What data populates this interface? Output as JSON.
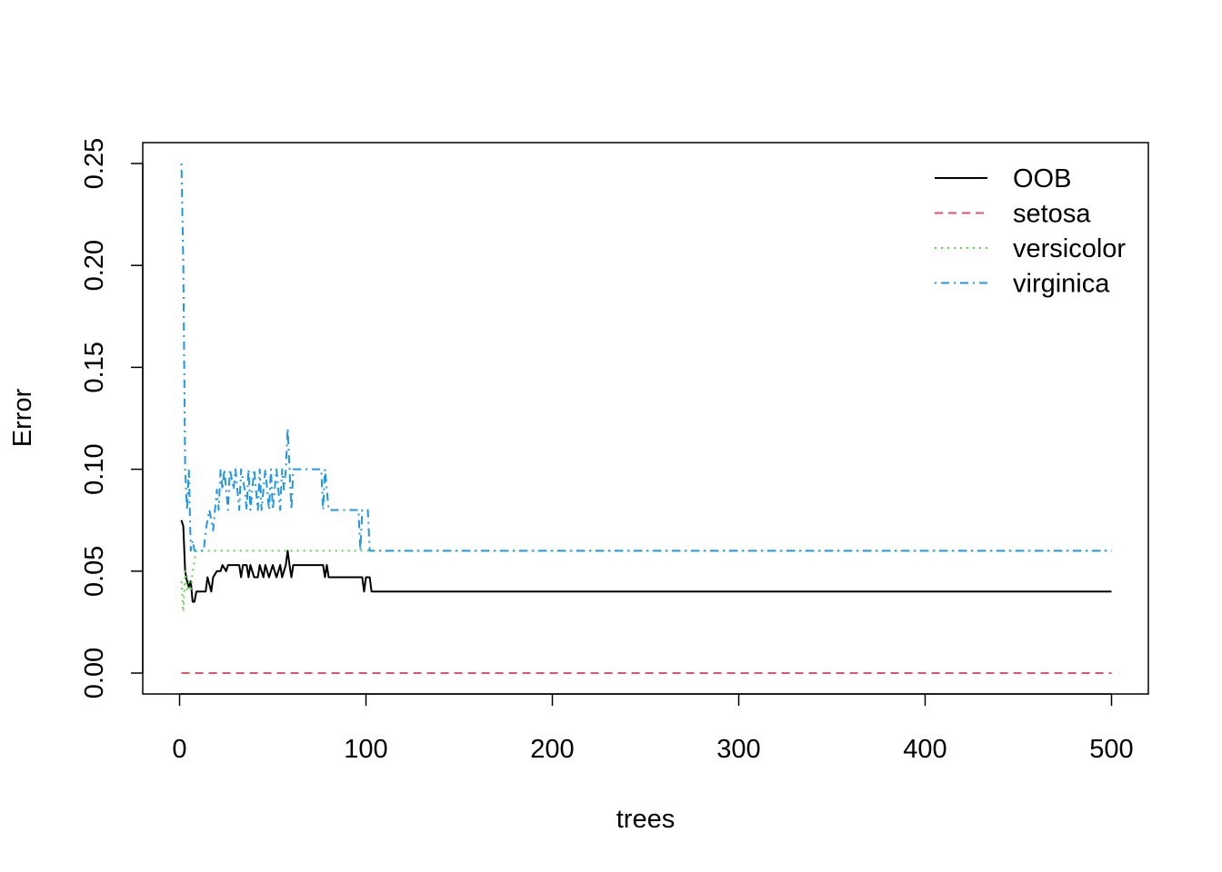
{
  "chart_data": {
    "type": "line",
    "title": "",
    "xlabel": "trees",
    "ylabel": "Error",
    "xlim": [
      0,
      500
    ],
    "ylim": [
      0,
      0.25
    ],
    "x_ticks": [
      "0",
      "100",
      "200",
      "300",
      "400",
      "500"
    ],
    "y_ticks": [
      "0.00",
      "0.05",
      "0.10",
      "0.15",
      "0.20",
      "0.25"
    ],
    "grid": false,
    "legend_position": "top-right",
    "series": [
      {
        "name": "OOB",
        "color": "#000000",
        "dash": "solid",
        "points": [
          [
            1,
            0.075
          ],
          [
            2,
            0.072
          ],
          [
            3,
            0.05
          ],
          [
            4,
            0.045
          ],
          [
            5,
            0.042
          ],
          [
            6,
            0.045
          ],
          [
            7,
            0.035
          ],
          [
            8,
            0.035
          ],
          [
            9,
            0.04
          ],
          [
            10,
            0.04
          ],
          [
            14,
            0.04
          ],
          [
            15,
            0.047
          ],
          [
            17,
            0.04
          ],
          [
            18,
            0.047
          ],
          [
            20,
            0.05
          ],
          [
            22,
            0.05
          ],
          [
            23,
            0.053
          ],
          [
            25,
            0.05
          ],
          [
            26,
            0.053
          ],
          [
            32,
            0.053
          ],
          [
            33,
            0.047
          ],
          [
            34,
            0.053
          ],
          [
            36,
            0.053
          ],
          [
            37,
            0.047
          ],
          [
            38,
            0.053
          ],
          [
            40,
            0.047
          ],
          [
            42,
            0.047
          ],
          [
            43,
            0.053
          ],
          [
            45,
            0.047
          ],
          [
            46,
            0.053
          ],
          [
            48,
            0.047
          ],
          [
            50,
            0.053
          ],
          [
            52,
            0.047
          ],
          [
            54,
            0.053
          ],
          [
            55,
            0.047
          ],
          [
            57,
            0.053
          ],
          [
            58,
            0.06
          ],
          [
            59,
            0.053
          ],
          [
            60,
            0.047
          ],
          [
            61,
            0.053
          ],
          [
            77,
            0.053
          ],
          [
            78,
            0.047
          ],
          [
            79,
            0.053
          ],
          [
            80,
            0.047
          ],
          [
            98,
            0.047
          ],
          [
            99,
            0.04
          ],
          [
            100,
            0.047
          ],
          [
            102,
            0.047
          ],
          [
            103,
            0.04
          ],
          [
            500,
            0.04
          ]
        ]
      },
      {
        "name": "setosa",
        "color": "#DF536B",
        "dash": "dashed",
        "points": [
          [
            1,
            0
          ],
          [
            500,
            0
          ]
        ]
      },
      {
        "name": "versicolor",
        "color": "#61D04F",
        "dash": "dotted",
        "points": [
          [
            1,
            0.045
          ],
          [
            2,
            0.03
          ],
          [
            3,
            0.05
          ],
          [
            4,
            0.04
          ],
          [
            5,
            0.045
          ],
          [
            6,
            0.04
          ],
          [
            7,
            0.05
          ],
          [
            9,
            0.06
          ],
          [
            500,
            0.06
          ]
        ]
      },
      {
        "name": "virginica",
        "color": "#2297E6",
        "dash": "dotdash",
        "points": [
          [
            1,
            0.25
          ],
          [
            2,
            0.2
          ],
          [
            3,
            0.1
          ],
          [
            4,
            0.08
          ],
          [
            5,
            0.1
          ],
          [
            6,
            0.06
          ],
          [
            7,
            0.065
          ],
          [
            8,
            0.06
          ],
          [
            13,
            0.06
          ],
          [
            14,
            0.07
          ],
          [
            16,
            0.08
          ],
          [
            18,
            0.07
          ],
          [
            19,
            0.08
          ],
          [
            20,
            0.09
          ],
          [
            21,
            0.08
          ],
          [
            22,
            0.1
          ],
          [
            23,
            0.09
          ],
          [
            24,
            0.1
          ],
          [
            26,
            0.08
          ],
          [
            27,
            0.1
          ],
          [
            29,
            0.09
          ],
          [
            30,
            0.1
          ],
          [
            32,
            0.08
          ],
          [
            33,
            0.1
          ],
          [
            35,
            0.09
          ],
          [
            36,
            0.08
          ],
          [
            37,
            0.1
          ],
          [
            38,
            0.08
          ],
          [
            40,
            0.1
          ],
          [
            41,
            0.09
          ],
          [
            42,
            0.08
          ],
          [
            43,
            0.1
          ],
          [
            44,
            0.08
          ],
          [
            46,
            0.1
          ],
          [
            47,
            0.09
          ],
          [
            48,
            0.08
          ],
          [
            49,
            0.1
          ],
          [
            50,
            0.08
          ],
          [
            52,
            0.1
          ],
          [
            53,
            0.09
          ],
          [
            54,
            0.08
          ],
          [
            55,
            0.1
          ],
          [
            56,
            0.09
          ],
          [
            57,
            0.1
          ],
          [
            58,
            0.12
          ],
          [
            59,
            0.1
          ],
          [
            60,
            0.08
          ],
          [
            61,
            0.1
          ],
          [
            76,
            0.1
          ],
          [
            77,
            0.08
          ],
          [
            78,
            0.1
          ],
          [
            80,
            0.08
          ],
          [
            96,
            0.08
          ],
          [
            97,
            0.06
          ],
          [
            98,
            0.08
          ],
          [
            101,
            0.08
          ],
          [
            102,
            0.06
          ],
          [
            500,
            0.06
          ]
        ]
      }
    ]
  }
}
